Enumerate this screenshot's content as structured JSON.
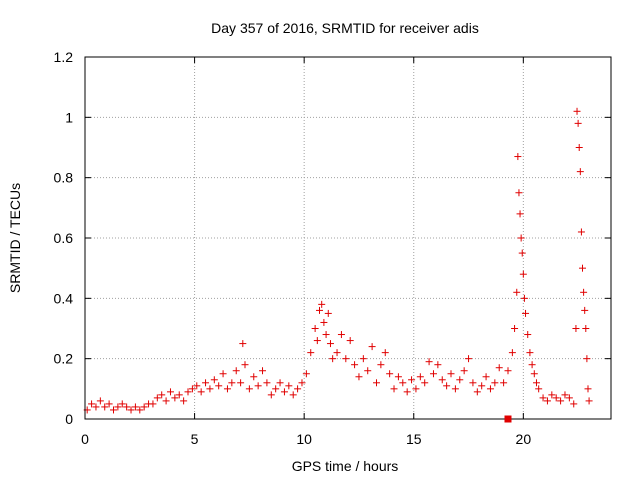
{
  "chart_data": {
    "type": "scatter",
    "title": "Day 357 of 2016, SRMTID for receiver adis",
    "xlabel": "GPS time / hours",
    "ylabel": "SRMTID / TECUs",
    "xlim": [
      0,
      24
    ],
    "ylim": [
      0,
      1.2
    ],
    "x_ticks": [
      0,
      5,
      10,
      15,
      20
    ],
    "x_tick_labels": [
      "0",
      "5",
      "10",
      "15",
      "20"
    ],
    "y_ticks": [
      0,
      0.2,
      0.4,
      0.6,
      0.8,
      1.0,
      1.2
    ],
    "y_tick_labels": [
      "0",
      "0.2",
      "0.4",
      "0.6",
      "0.8",
      "1",
      "1.2"
    ],
    "grid": true,
    "marker": "+",
    "color": "#e00000",
    "series": [
      {
        "name": "SRMTID",
        "points": [
          [
            0.1,
            0.03
          ],
          [
            0.3,
            0.05
          ],
          [
            0.5,
            0.04
          ],
          [
            0.7,
            0.06
          ],
          [
            0.9,
            0.04
          ],
          [
            1.1,
            0.05
          ],
          [
            1.3,
            0.03
          ],
          [
            1.5,
            0.04
          ],
          [
            1.7,
            0.05
          ],
          [
            1.9,
            0.04
          ],
          [
            2.1,
            0.03
          ],
          [
            2.3,
            0.04
          ],
          [
            2.5,
            0.03
          ],
          [
            2.7,
            0.04
          ],
          [
            2.9,
            0.05
          ],
          [
            3.1,
            0.05
          ],
          [
            3.3,
            0.07
          ],
          [
            3.5,
            0.08
          ],
          [
            3.7,
            0.06
          ],
          [
            3.9,
            0.09
          ],
          [
            4.1,
            0.07
          ],
          [
            4.3,
            0.08
          ],
          [
            4.5,
            0.06
          ],
          [
            4.7,
            0.09
          ],
          [
            4.9,
            0.1
          ],
          [
            5.1,
            0.11
          ],
          [
            5.3,
            0.09
          ],
          [
            5.5,
            0.12
          ],
          [
            5.7,
            0.1
          ],
          [
            5.9,
            0.13
          ],
          [
            6.1,
            0.11
          ],
          [
            6.3,
            0.15
          ],
          [
            6.5,
            0.1
          ],
          [
            6.7,
            0.12
          ],
          [
            6.9,
            0.16
          ],
          [
            7.1,
            0.12
          ],
          [
            7.2,
            0.25
          ],
          [
            7.3,
            0.18
          ],
          [
            7.5,
            0.1
          ],
          [
            7.7,
            0.14
          ],
          [
            7.9,
            0.11
          ],
          [
            8.1,
            0.16
          ],
          [
            8.3,
            0.12
          ],
          [
            8.5,
            0.08
          ],
          [
            8.7,
            0.1
          ],
          [
            8.9,
            0.12
          ],
          [
            9.1,
            0.09
          ],
          [
            9.3,
            0.11
          ],
          [
            9.5,
            0.08
          ],
          [
            9.7,
            0.1
          ],
          [
            9.9,
            0.12
          ],
          [
            10.1,
            0.15
          ],
          [
            10.3,
            0.22
          ],
          [
            10.5,
            0.3
          ],
          [
            10.6,
            0.26
          ],
          [
            10.7,
            0.36
          ],
          [
            10.8,
            0.38
          ],
          [
            10.9,
            0.32
          ],
          [
            11.0,
            0.28
          ],
          [
            11.1,
            0.35
          ],
          [
            11.2,
            0.25
          ],
          [
            11.3,
            0.2
          ],
          [
            11.5,
            0.22
          ],
          [
            11.7,
            0.28
          ],
          [
            11.9,
            0.2
          ],
          [
            12.1,
            0.26
          ],
          [
            12.3,
            0.18
          ],
          [
            12.5,
            0.14
          ],
          [
            12.7,
            0.2
          ],
          [
            12.9,
            0.16
          ],
          [
            13.1,
            0.24
          ],
          [
            13.3,
            0.12
          ],
          [
            13.5,
            0.18
          ],
          [
            13.7,
            0.22
          ],
          [
            13.9,
            0.15
          ],
          [
            14.1,
            0.1
          ],
          [
            14.3,
            0.14
          ],
          [
            14.5,
            0.12
          ],
          [
            14.7,
            0.09
          ],
          [
            14.9,
            0.13
          ],
          [
            15.1,
            0.1
          ],
          [
            15.3,
            0.14
          ],
          [
            15.5,
            0.12
          ],
          [
            15.7,
            0.19
          ],
          [
            15.9,
            0.15
          ],
          [
            16.1,
            0.18
          ],
          [
            16.3,
            0.13
          ],
          [
            16.5,
            0.11
          ],
          [
            16.7,
            0.15
          ],
          [
            16.9,
            0.1
          ],
          [
            17.1,
            0.13
          ],
          [
            17.3,
            0.16
          ],
          [
            17.5,
            0.2
          ],
          [
            17.7,
            0.12
          ],
          [
            17.9,
            0.09
          ],
          [
            18.1,
            0.11
          ],
          [
            18.3,
            0.14
          ],
          [
            18.5,
            0.1
          ],
          [
            18.7,
            0.12
          ],
          [
            18.9,
            0.17
          ],
          [
            19.1,
            0.12
          ],
          [
            19.3,
            0.16
          ],
          [
            19.5,
            0.22
          ],
          [
            19.6,
            0.3
          ],
          [
            19.7,
            0.42
          ],
          [
            19.75,
            0.87
          ],
          [
            19.8,
            0.75
          ],
          [
            19.85,
            0.68
          ],
          [
            19.9,
            0.6
          ],
          [
            19.95,
            0.55
          ],
          [
            20.0,
            0.48
          ],
          [
            20.05,
            0.4
          ],
          [
            20.1,
            0.35
          ],
          [
            20.2,
            0.28
          ],
          [
            20.3,
            0.22
          ],
          [
            20.4,
            0.18
          ],
          [
            20.5,
            0.15
          ],
          [
            20.6,
            0.12
          ],
          [
            20.7,
            0.1
          ],
          [
            20.9,
            0.07
          ],
          [
            21.1,
            0.06
          ],
          [
            21.3,
            0.08
          ],
          [
            21.5,
            0.07
          ],
          [
            21.7,
            0.06
          ],
          [
            21.9,
            0.08
          ],
          [
            22.1,
            0.07
          ],
          [
            22.3,
            0.05
          ],
          [
            22.4,
            0.3
          ],
          [
            22.45,
            1.02
          ],
          [
            22.5,
            0.98
          ],
          [
            22.55,
            0.9
          ],
          [
            22.6,
            0.82
          ],
          [
            22.65,
            0.62
          ],
          [
            22.7,
            0.5
          ],
          [
            22.75,
            0.42
          ],
          [
            22.8,
            0.36
          ],
          [
            22.85,
            0.3
          ],
          [
            22.9,
            0.2
          ],
          [
            22.95,
            0.1
          ],
          [
            23.0,
            0.06
          ]
        ]
      }
    ],
    "annotations": [
      {
        "type": "square-marker",
        "x": 19.3,
        "y": 0.0
      }
    ]
  }
}
